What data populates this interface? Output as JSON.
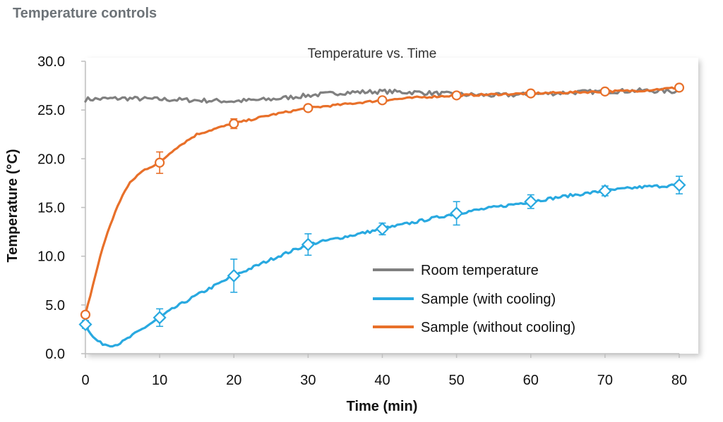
{
  "header": {
    "title": "Temperature controls"
  },
  "colors": {
    "room": "#808080",
    "cooling": "#29a9e0",
    "no_cooling": "#e8702a",
    "axis": "#bfbfbf"
  },
  "chart_data": {
    "type": "line",
    "title": "Temperature vs. Time",
    "xlabel": "Time (min)",
    "ylabel": "Temperature (°C)",
    "xlim": [
      0,
      80
    ],
    "ylim": [
      0,
      30
    ],
    "x_ticks": [
      "0",
      "10",
      "20",
      "30",
      "40",
      "50",
      "60",
      "70",
      "80"
    ],
    "y_ticks": [
      "0.0",
      "5.0",
      "10.0",
      "15.0",
      "20.0",
      "25.0",
      "30.0"
    ],
    "grid": false,
    "legend_position": "lower-right",
    "series": [
      {
        "name": "Room temperature",
        "color": "#808080",
        "marker": "none",
        "x": [
          0,
          5,
          10,
          15,
          20,
          25,
          30,
          35,
          40,
          45,
          50,
          55,
          60,
          65,
          70,
          75,
          80
        ],
        "y": [
          26.1,
          26.2,
          26.1,
          26.0,
          25.9,
          26.1,
          26.5,
          26.8,
          26.9,
          26.8,
          26.6,
          26.5,
          26.6,
          26.8,
          26.9,
          27.0,
          26.9
        ]
      },
      {
        "name": "Sample (with cooling)",
        "color": "#29a9e0",
        "marker": "diamond",
        "x": [
          0,
          1,
          2,
          3,
          4,
          5,
          6,
          8,
          10,
          12,
          15,
          18,
          20,
          23,
          26,
          30,
          35,
          40,
          45,
          50,
          55,
          60,
          65,
          70,
          75,
          80
        ],
        "y": [
          3.0,
          1.7,
          1.1,
          0.9,
          0.9,
          1.2,
          1.7,
          2.7,
          3.7,
          4.7,
          6.0,
          7.2,
          8.0,
          9.0,
          10.0,
          11.2,
          12.0,
          12.8,
          13.6,
          14.4,
          15.0,
          15.6,
          16.2,
          16.7,
          17.1,
          17.3
        ],
        "markers": {
          "x": [
            0,
            10,
            20,
            30,
            40,
            50,
            60,
            70,
            80
          ],
          "y": [
            3.0,
            3.7,
            8.0,
            11.2,
            12.8,
            14.4,
            15.6,
            16.7,
            17.3
          ],
          "err": [
            0.4,
            0.9,
            1.7,
            1.1,
            0.6,
            1.2,
            0.7,
            0.5,
            0.9
          ]
        }
      },
      {
        "name": "Sample (without cooling)",
        "color": "#e8702a",
        "marker": "circle",
        "x": [
          0,
          1,
          2,
          3,
          4,
          5,
          6,
          7,
          8,
          10,
          12,
          15,
          18,
          20,
          25,
          30,
          35,
          40,
          45,
          50,
          55,
          60,
          65,
          70,
          75,
          80
        ],
        "y": [
          4.0,
          7.0,
          10.0,
          12.5,
          14.5,
          16.3,
          17.5,
          18.3,
          18.9,
          19.6,
          21.0,
          22.5,
          23.2,
          23.6,
          24.5,
          25.2,
          25.6,
          26.0,
          26.3,
          26.5,
          26.6,
          26.7,
          26.8,
          26.9,
          27.0,
          27.3
        ],
        "markers": {
          "x": [
            0,
            10,
            20,
            30,
            40,
            50,
            60,
            70,
            80
          ],
          "y": [
            4.0,
            19.6,
            23.6,
            25.2,
            26.0,
            26.5,
            26.7,
            26.9,
            27.3
          ],
          "err": [
            0.3,
            1.1,
            0.5,
            0.3,
            0.3,
            0.2,
            0.2,
            0.2,
            0.2
          ]
        }
      }
    ]
  }
}
